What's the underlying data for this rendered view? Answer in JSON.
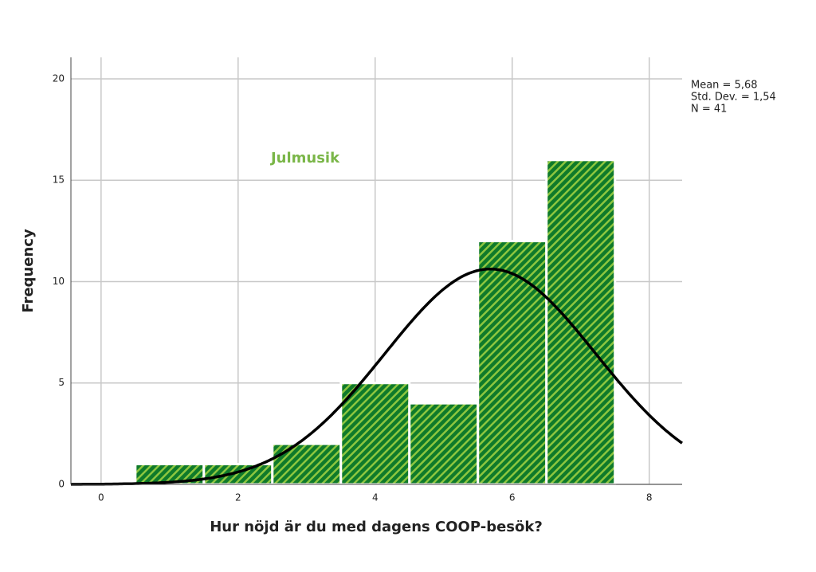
{
  "chart_data": {
    "type": "histogram",
    "x_label": "Hur nöjd är du med dagens COOP-besök?",
    "y_label": "Frequency",
    "annotation": "Julmusik",
    "annotation_color": "#7ab648",
    "bins": [
      0.5,
      1.5,
      2.5,
      3.5,
      4.5,
      5.5,
      6.5,
      7.5
    ],
    "values": [
      1,
      1,
      2,
      5,
      4,
      12,
      16
    ],
    "color": "#0f7a2a",
    "hatch_color": "#8cc63f",
    "curve_color": "#000000",
    "stats": [
      {
        "value": 5.68,
        "label": "Mean = 5,68"
      },
      {
        "value": 1.54,
        "label": "Std. Dev. = 1,54"
      },
      {
        "value": 41,
        "label": "N = 41"
      }
    ],
    "xlim": [
      -0.44,
      8.48
    ],
    "xticks": [
      0,
      2,
      4,
      6,
      8
    ],
    "ylim": [
      0,
      21.06
    ],
    "yticks": [
      0,
      5,
      10,
      15,
      20
    ],
    "grid": true
  }
}
